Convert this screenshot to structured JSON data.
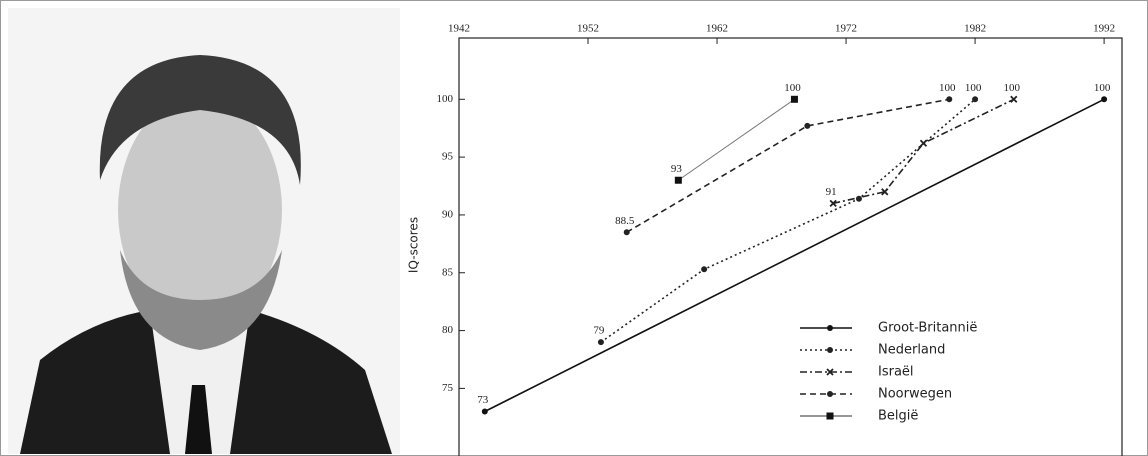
{
  "chart_data": {
    "type": "line",
    "y_label": "IQ-scores",
    "xlim": [
      1942,
      1993
    ],
    "xticks": [
      1942,
      1952,
      1962,
      1972,
      1982,
      1992
    ],
    "ylim": [
      69.5,
      105.3
    ],
    "yticks": [
      75,
      80,
      85,
      90,
      95,
      100
    ],
    "legend": "lower right",
    "series": [
      {
        "name": "Groot-Britannië",
        "color": "#111111",
        "dash": "solid",
        "marker": "circle",
        "x": [
          1944,
          1992
        ],
        "values": [
          73,
          100
        ],
        "value_labels": [
          "73",
          "100"
        ]
      },
      {
        "name": "Nederland",
        "color": "#222222",
        "dash": "dotted",
        "marker": "circle",
        "x": [
          1953,
          1961,
          1973,
          1982
        ],
        "values": [
          79,
          85.3,
          91.4,
          100
        ],
        "value_labels": [
          "79",
          null,
          null,
          "100"
        ]
      },
      {
        "name": "Israël",
        "color": "#222222",
        "dash": "dashdot",
        "marker": "cross",
        "x": [
          1971,
          1975,
          1978,
          1985
        ],
        "values": [
          91,
          92,
          96.2,
          100
        ],
        "value_labels": [
          "91",
          null,
          null,
          "100"
        ]
      },
      {
        "name": "Noorwegen",
        "color": "#222222",
        "dash": "dashed",
        "marker": "circle",
        "x": [
          1955,
          1969,
          1980
        ],
        "values": [
          88.5,
          97.7,
          100
        ],
        "value_labels": [
          "88.5",
          null,
          "100"
        ]
      },
      {
        "name": "België",
        "color": "#777777",
        "dash": "solid",
        "marker": "square",
        "x": [
          1959,
          1968
        ],
        "values": [
          93,
          100
        ],
        "value_labels": [
          "93",
          "100"
        ]
      }
    ]
  }
}
